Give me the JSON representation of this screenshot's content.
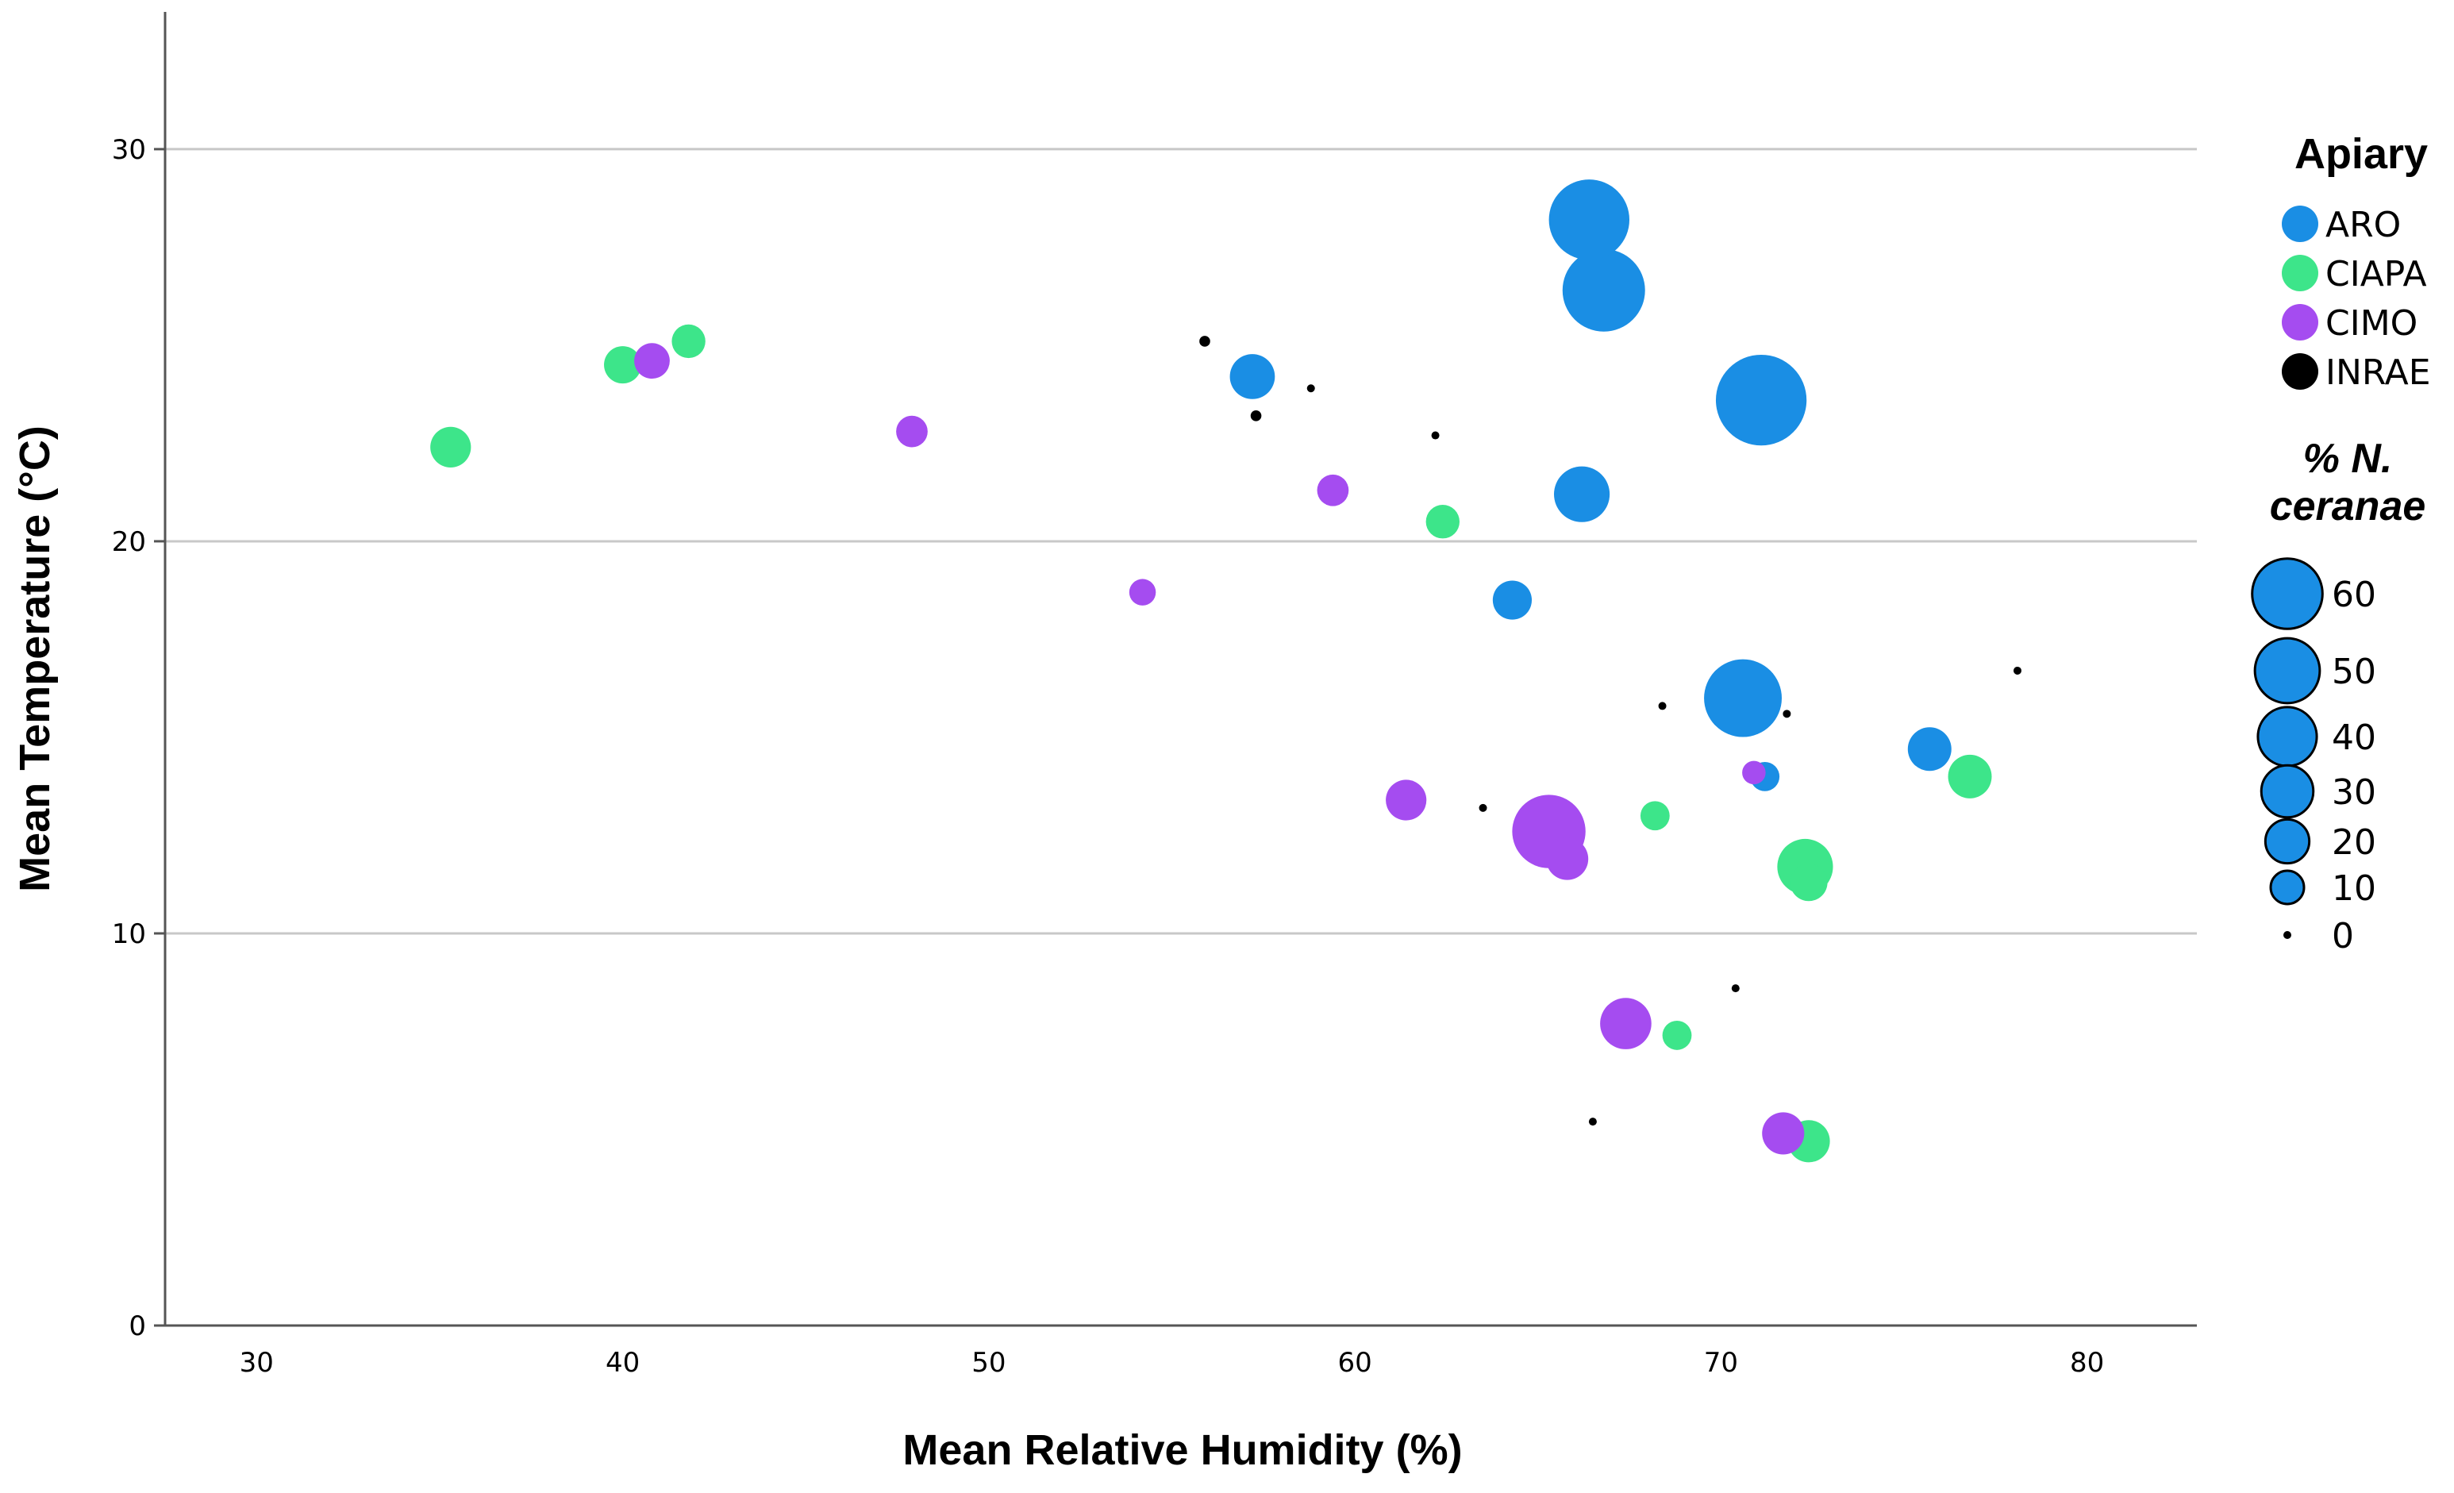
{
  "chart_data": {
    "type": "scatter",
    "subtype": "bubble",
    "title": "",
    "xlabel": "Mean Relative Humidity  (%)",
    "ylabel": "Mean Temperature (°C)",
    "xlim": [
      27.5,
      83
    ],
    "ylim": [
      0,
      33.5
    ],
    "xticks": [
      30,
      40,
      50,
      60,
      70,
      80
    ],
    "yticks": [
      0,
      10,
      20,
      30
    ],
    "gridlines": "horizontal",
    "legend": {
      "title": "Apiary",
      "placement": "right",
      "entries": [
        {
          "name": "ARO",
          "color": "#1a8ee4"
        },
        {
          "name": "CIAPA",
          "color": "#3de58a"
        },
        {
          "name": "CIMO",
          "color": "#a54cf0"
        },
        {
          "name": "INRAE",
          "color": "#000000"
        }
      ]
    },
    "size_legend": {
      "title_line1": "% N.",
      "title_line2": "ceranae",
      "values": [
        60,
        50,
        40,
        30,
        20,
        10,
        0
      ],
      "labels": [
        "60",
        "50",
        "40",
        "30",
        "20",
        "10",
        "0"
      ]
    },
    "series": [
      {
        "name": "ARO",
        "color": "#1a8ee4",
        "points": [
          {
            "x": 66.4,
            "y": 28.2,
            "size": 52
          },
          {
            "x": 66.8,
            "y": 26.4,
            "size": 55
          },
          {
            "x": 71.1,
            "y": 23.6,
            "size": 68
          },
          {
            "x": 57.2,
            "y": 24.2,
            "size": 13
          },
          {
            "x": 66.2,
            "y": 21.2,
            "size": 22
          },
          {
            "x": 64.3,
            "y": 18.5,
            "size": 9
          },
          {
            "x": 70.6,
            "y": 16.0,
            "size": 48
          },
          {
            "x": 75.7,
            "y": 14.7,
            "size": 12
          },
          {
            "x": 71.2,
            "y": 14.0,
            "size": 4
          }
        ]
      },
      {
        "name": "CIAPA",
        "color": "#3de58a",
        "points": [
          {
            "x": 35.3,
            "y": 22.4,
            "size": 10
          },
          {
            "x": 40.0,
            "y": 24.5,
            "size": 8
          },
          {
            "x": 41.8,
            "y": 25.1,
            "size": 6
          },
          {
            "x": 62.4,
            "y": 20.5,
            "size": 6
          },
          {
            "x": 68.2,
            "y": 13.0,
            "size": 4
          },
          {
            "x": 72.3,
            "y": 11.7,
            "size": 22
          },
          {
            "x": 72.4,
            "y": 11.3,
            "size": 8
          },
          {
            "x": 76.8,
            "y": 14.0,
            "size": 12
          },
          {
            "x": 68.8,
            "y": 7.4,
            "size": 4
          },
          {
            "x": 72.4,
            "y": 4.7,
            "size": 11
          }
        ]
      },
      {
        "name": "CIMO",
        "color": "#a54cf0",
        "points": [
          {
            "x": 40.8,
            "y": 24.6,
            "size": 7
          },
          {
            "x": 47.9,
            "y": 22.8,
            "size": 5
          },
          {
            "x": 59.4,
            "y": 21.3,
            "size": 5
          },
          {
            "x": 54.2,
            "y": 18.7,
            "size": 3
          },
          {
            "x": 61.4,
            "y": 13.4,
            "size": 10
          },
          {
            "x": 65.3,
            "y": 12.6,
            "size": 42
          },
          {
            "x": 65.8,
            "y": 11.9,
            "size": 11
          },
          {
            "x": 70.9,
            "y": 14.1,
            "size": 2
          },
          {
            "x": 67.4,
            "y": 7.7,
            "size": 18
          },
          {
            "x": 71.7,
            "y": 4.9,
            "size": 11
          }
        ]
      },
      {
        "name": "INRAE",
        "color": "#000000",
        "points": [
          {
            "x": 55.9,
            "y": 25.1,
            "size": 0.3
          },
          {
            "x": 58.8,
            "y": 23.9,
            "size": 0
          },
          {
            "x": 57.3,
            "y": 23.2,
            "size": 0.3
          },
          {
            "x": 62.2,
            "y": 22.7,
            "size": 0
          },
          {
            "x": 68.4,
            "y": 15.8,
            "size": 0
          },
          {
            "x": 71.8,
            "y": 15.6,
            "size": 0
          },
          {
            "x": 78.1,
            "y": 16.7,
            "size": 0
          },
          {
            "x": 63.5,
            "y": 13.2,
            "size": 0
          },
          {
            "x": 70.4,
            "y": 8.6,
            "size": 0
          },
          {
            "x": 66.5,
            "y": 5.2,
            "size": 0
          }
        ]
      }
    ]
  }
}
